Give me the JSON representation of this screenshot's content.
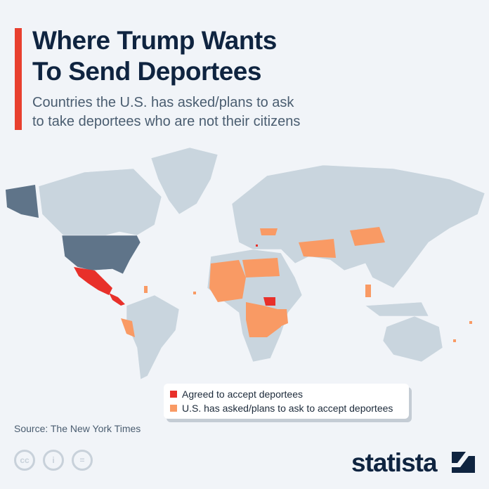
{
  "header": {
    "title_line1": "Where Trump Wants",
    "title_line2": "To Send Deportees",
    "subtitle_line1": "Countries the U.S. has asked/plans to ask",
    "subtitle_line2": "to take deportees who are not their citizens"
  },
  "legend": {
    "items": [
      {
        "label": "Agreed to accept deportees",
        "color": "#e8302a"
      },
      {
        "label": "U.S. has asked/plans to ask to accept deportees",
        "color": "#f99a64"
      }
    ]
  },
  "colors": {
    "land": "#c9d5de",
    "us": "#5f7489",
    "background": "#f1f4f8",
    "accent": "#e8402f"
  },
  "footer": {
    "source": "Source: The New York Times",
    "license_icons": [
      "cc-icon",
      "attribution-icon",
      "no-derivatives-icon"
    ],
    "brand": "statista"
  }
}
